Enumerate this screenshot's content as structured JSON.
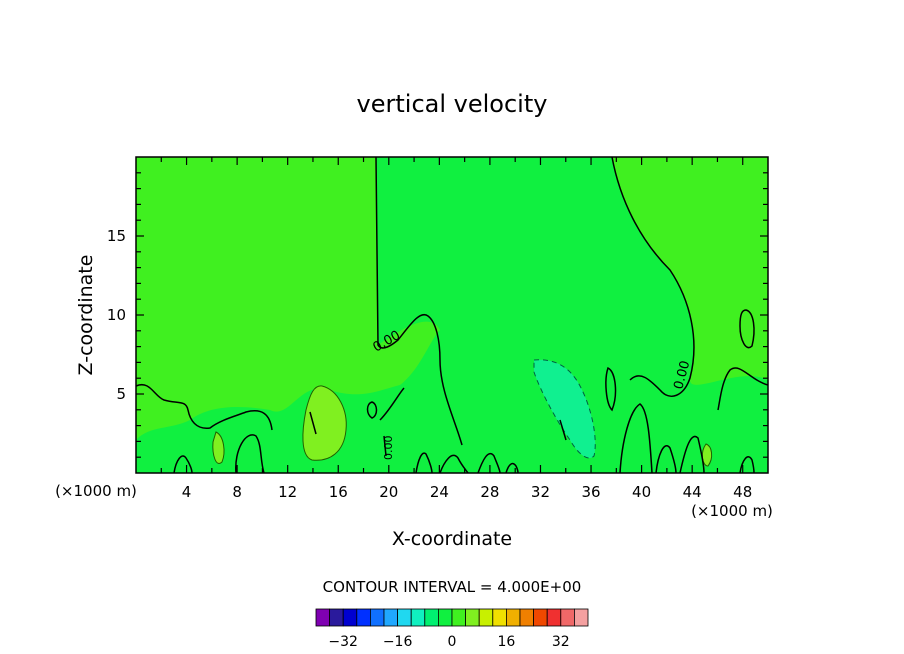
{
  "chart_data": {
    "type": "heatmap",
    "title": "vertical velocity",
    "xlabel": "X-coordinate",
    "ylabel": "Z-coordinate",
    "x_unit": "(×1000 m)",
    "x_unit_right": "(×1000 m)",
    "xlim": [
      0,
      50
    ],
    "ylim": [
      0,
      20
    ],
    "x_ticks": [
      4,
      8,
      12,
      16,
      20,
      24,
      28,
      32,
      36,
      40,
      44,
      48
    ],
    "y_ticks": [
      5,
      10,
      15
    ],
    "contour_interval_text": "CONTOUR INTERVAL = 4.000E+00",
    "contour_labels": [
      "0.00",
      "0.00",
      "0.00"
    ],
    "colorbar": {
      "colors": [
        "#7f00b2",
        "#2a1a9c",
        "#0000d0",
        "#0030ff",
        "#1070ff",
        "#20a8ff",
        "#20d8f0",
        "#10f0c0",
        "#00f070",
        "#10f040",
        "#40f020",
        "#80f020",
        "#c8f000",
        "#f0e000",
        "#f0b000",
        "#f08000",
        "#f04800",
        "#f03030",
        "#f06868",
        "#f4a0a0"
      ],
      "tick_labels": [
        "-32",
        "-16",
        "0",
        "16",
        "32"
      ],
      "tick_values": [
        -32,
        -16,
        0,
        16,
        32
      ],
      "range": [
        -40,
        40
      ]
    },
    "regions": [
      {
        "name": "positive",
        "fill": "#40f020"
      },
      {
        "name": "near-zero",
        "fill": "#10f040"
      },
      {
        "name": "updraft",
        "fill": "#80f020"
      },
      {
        "name": "downdraft",
        "fill": "#10f090"
      }
    ]
  }
}
